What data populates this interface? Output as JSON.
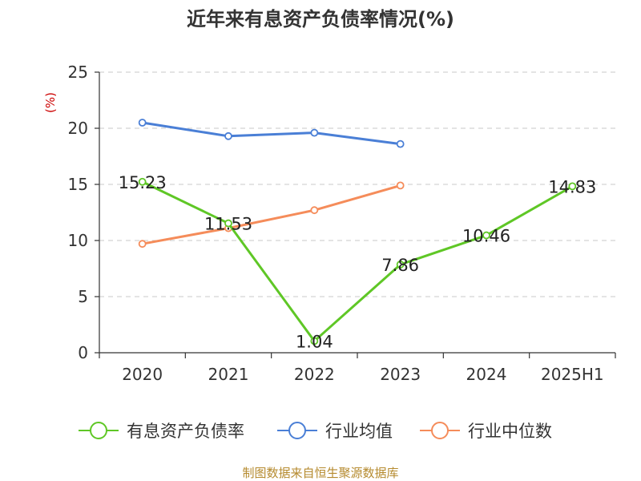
{
  "chart_data": {
    "type": "line",
    "title": "近年来有息资产负债率情况(%)",
    "ylabel": "(%)",
    "xlabel": "",
    "categories": [
      "2020",
      "2021",
      "2022",
      "2023",
      "2024",
      "2025H1"
    ],
    "ylim": [
      0,
      25
    ],
    "yticks": [
      0,
      5,
      10,
      15,
      20,
      25
    ],
    "grid": true,
    "legend_position": "bottom",
    "series": [
      {
        "name": "有息资产负债率",
        "color": "#5fc726",
        "values": [
          15.23,
          11.53,
          1.04,
          7.86,
          10.46,
          14.83
        ],
        "labels": [
          "15.23",
          "11.53",
          "1.04",
          "7.86",
          "10.46",
          "14.83"
        ],
        "show_labels": true
      },
      {
        "name": "行业均值",
        "color": "#4a7fd6",
        "values": [
          20.5,
          19.3,
          19.6,
          18.6,
          null,
          null
        ],
        "show_labels": false
      },
      {
        "name": "行业中位数",
        "color": "#f58c5a",
        "values": [
          9.7,
          11.1,
          12.7,
          14.9,
          null,
          null
        ],
        "show_labels": false
      }
    ],
    "source": "制图数据来自恒生聚源数据库"
  }
}
